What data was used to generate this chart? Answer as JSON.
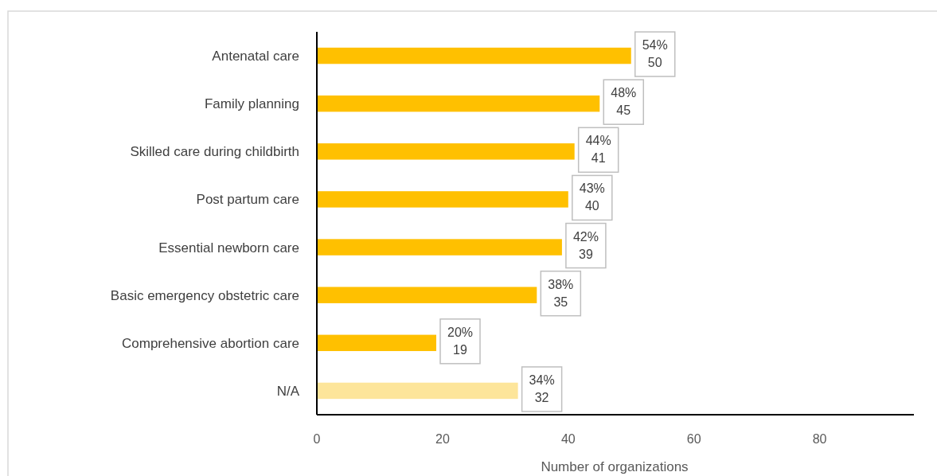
{
  "chart_data": {
    "type": "bar",
    "orientation": "horizontal",
    "xlabel": "Number of organizations",
    "categories": [
      "Antenatal care",
      "Family planning",
      "Skilled care during childbirth",
      "Post partum care",
      "Essential newborn care",
      "Basic emergency obstetric care",
      "Comprehensive abortion care",
      "N/A"
    ],
    "values": [
      50,
      45,
      41,
      40,
      39,
      35,
      19,
      32
    ],
    "colors": [
      "#ffc000",
      "#ffc000",
      "#ffc000",
      "#ffc000",
      "#ffc000",
      "#ffc000",
      "#ffc000",
      "#fde59a"
    ],
    "value_labels": [
      "54%\n50",
      "48%\n45",
      "44%\n41",
      "43%\n40",
      "42%\n39",
      "38%\n35",
      "20%\n19",
      "34%\n32"
    ],
    "xlim": [
      0,
      95
    ],
    "xticks": [
      0,
      20,
      40,
      60,
      80
    ],
    "grid": false
  }
}
